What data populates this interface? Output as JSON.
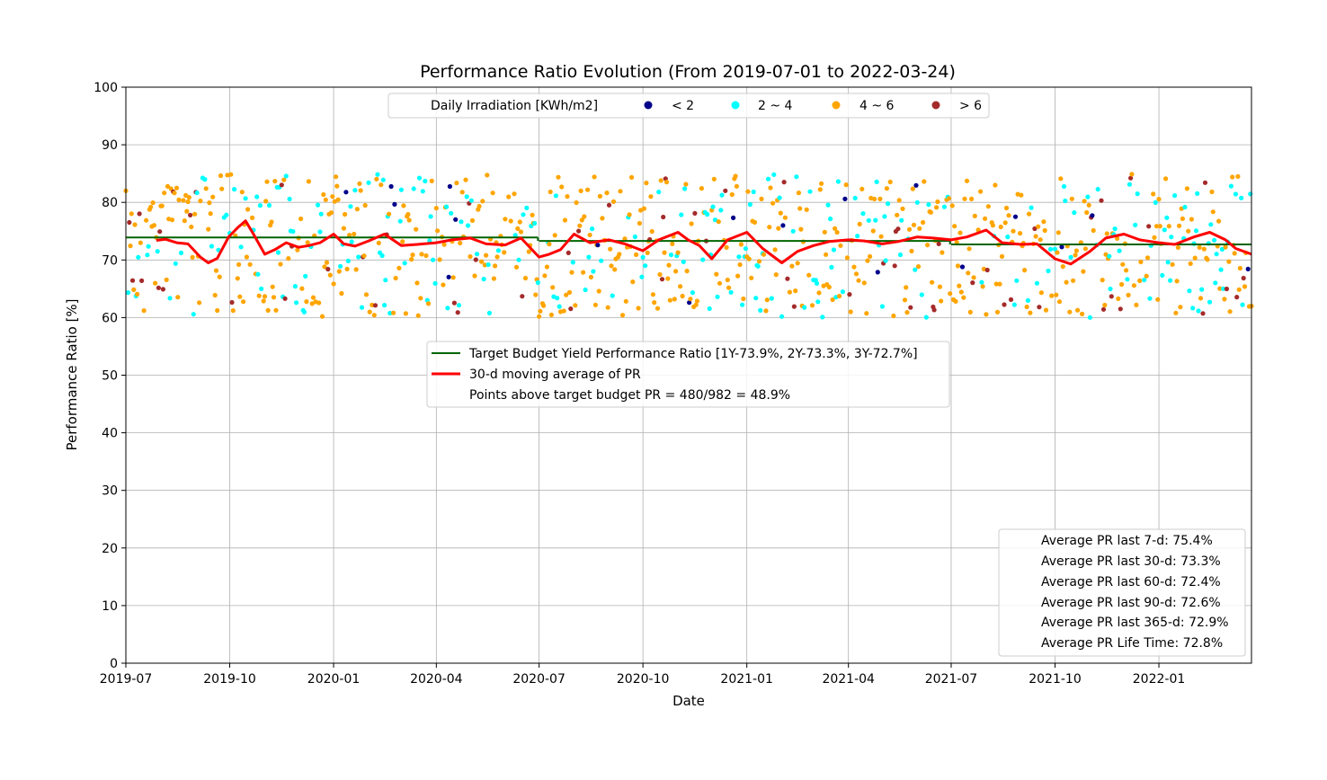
{
  "chart_data": {
    "type": "scatter",
    "title": "Performance Ratio Evolution (From 2019-07-01 to 2022-03-24)",
    "xlabel": "Date",
    "ylabel": "Performance Ratio [%]",
    "xlim": [
      "2019-07-01",
      "2022-03-24"
    ],
    "ylim": [
      0,
      100
    ],
    "grid": true,
    "x_ticks": [
      "2019-07",
      "2019-10",
      "2020-01",
      "2020-04",
      "2020-07",
      "2020-10",
      "2021-01",
      "2021-04",
      "2021-07",
      "2021-10",
      "2022-01"
    ],
    "y_ticks": [
      0,
      10,
      20,
      30,
      40,
      50,
      60,
      70,
      80,
      90,
      100
    ],
    "irradiation_legend": {
      "title": "Daily Irradiation [KWh/m2]",
      "placement": "upper-center",
      "entries": [
        {
          "label": "< 2",
          "color": "#00008b"
        },
        {
          "label": "2 ~ 4",
          "color": "#00ffff"
        },
        {
          "label": "4 ~ 6",
          "color": "#ffa500"
        },
        {
          "label": "> 6",
          "color": "#a52a2a"
        }
      ]
    },
    "series_legend": {
      "placement": "center",
      "entries": [
        {
          "label": "Target Budget Yield Performance Ratio [1Y-73.9%, 2Y-73.3%, 3Y-72.7%]",
          "color": "#006400"
        },
        {
          "label": "30-d moving average of PR",
          "color": "#ff0000"
        },
        {
          "label": "Points above target budget PR = 480/982 = 48.9%",
          "color": "none"
        }
      ]
    },
    "target_budget": [
      {
        "from": "2019-07-01",
        "to": "2020-06-30",
        "value": 73.9
      },
      {
        "from": "2020-07-01",
        "to": "2021-06-30",
        "value": 73.3
      },
      {
        "from": "2021-07-01",
        "to": "2022-03-24",
        "value": 72.7
      }
    ],
    "moving_average_30d": {
      "x": [
        "2019-07-28",
        "2019-08-05",
        "2019-08-15",
        "2019-08-25",
        "2019-09-05",
        "2019-09-12",
        "2019-09-20",
        "2019-09-30",
        "2019-10-08",
        "2019-10-15",
        "2019-10-22",
        "2019-11-01",
        "2019-11-10",
        "2019-11-20",
        "2019-12-01",
        "2019-12-10",
        "2019-12-20",
        "2020-01-01",
        "2020-01-10",
        "2020-01-20",
        "2020-02-01",
        "2020-02-15",
        "2020-03-01",
        "2020-03-15",
        "2020-04-01",
        "2020-04-15",
        "2020-05-01",
        "2020-05-15",
        "2020-06-01",
        "2020-06-15",
        "2020-07-01",
        "2020-07-10",
        "2020-07-20",
        "2020-08-01",
        "2020-08-15",
        "2020-09-01",
        "2020-09-15",
        "2020-10-01",
        "2020-10-15",
        "2020-11-01",
        "2020-11-10",
        "2020-11-20",
        "2020-12-01",
        "2020-12-15",
        "2021-01-01",
        "2021-01-15",
        "2021-02-01",
        "2021-02-15",
        "2021-03-01",
        "2021-03-15",
        "2021-04-01",
        "2021-04-15",
        "2021-05-01",
        "2021-05-15",
        "2021-06-01",
        "2021-06-15",
        "2021-07-01",
        "2021-07-15",
        "2021-08-01",
        "2021-08-15",
        "2021-09-01",
        "2021-09-15",
        "2021-10-01",
        "2021-10-15",
        "2021-11-01",
        "2021-11-15",
        "2021-12-01",
        "2021-12-15",
        "2022-01-01",
        "2022-01-15",
        "2022-02-01",
        "2022-02-15",
        "2022-03-01",
        "2022-03-10",
        "2022-03-24"
      ],
      "y": [
        73.4,
        73.6,
        73.0,
        72.8,
        70.5,
        69.5,
        70.3,
        74.0,
        75.6,
        76.8,
        74.5,
        71.0,
        71.8,
        73.0,
        72.2,
        72.5,
        73.0,
        74.5,
        72.8,
        72.4,
        73.3,
        74.5,
        72.5,
        72.7,
        73.0,
        73.5,
        73.8,
        72.8,
        72.6,
        73.8,
        70.5,
        71.0,
        71.8,
        74.5,
        73.0,
        73.5,
        72.8,
        71.6,
        73.5,
        74.8,
        73.5,
        72.5,
        70.2,
        73.5,
        74.8,
        72.0,
        69.5,
        71.5,
        72.5,
        73.2,
        73.5,
        73.3,
        72.8,
        73.2,
        74.0,
        73.8,
        73.5,
        74.0,
        75.2,
        73.0,
        72.7,
        72.8,
        70.2,
        69.3,
        71.5,
        73.8,
        74.5,
        73.5,
        73.0,
        72.7,
        74.0,
        74.8,
        73.5,
        72.0,
        71.0
      ]
    },
    "summary": [
      "Average PR last 7-d: 75.4%",
      "Average PR last 30-d: 73.3%",
      "Average PR last 60-d: 72.4%",
      "Average PR last 90-d: 72.6%",
      "Average PR last 365-d: 72.9%",
      "Average PR Life Time: 72.8%"
    ]
  }
}
